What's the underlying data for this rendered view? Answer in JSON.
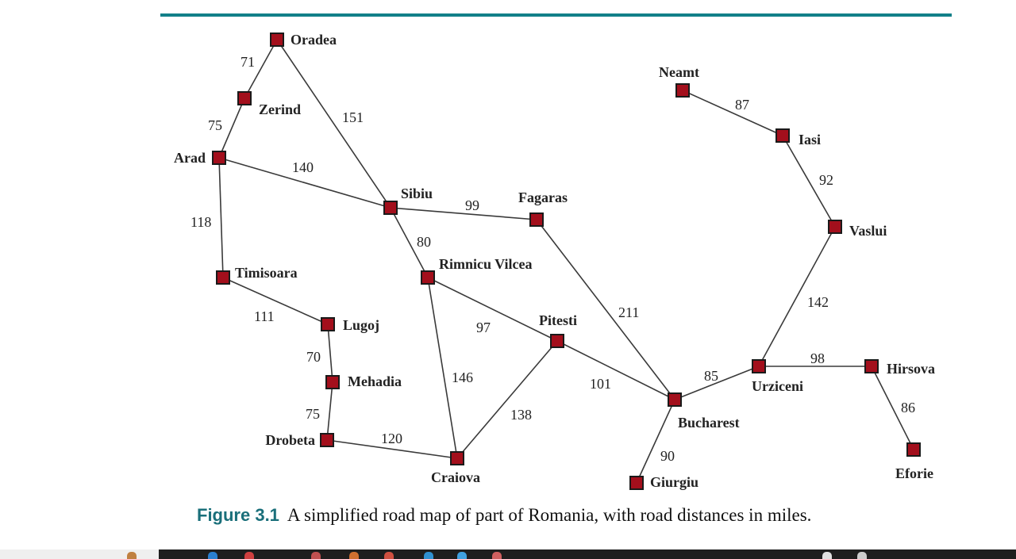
{
  "colors": {
    "accent_rule": "#128089",
    "node_fill": "#a30f1c",
    "node_stroke": "#1a1a1a",
    "edge": "#3a3a3a",
    "figure_number": "#1a6f7a"
  },
  "cities": [
    {
      "id": "oradea",
      "name": "Oradea"
    },
    {
      "id": "zerind",
      "name": "Zerind"
    },
    {
      "id": "arad",
      "name": "Arad"
    },
    {
      "id": "sibiu",
      "name": "Sibiu"
    },
    {
      "id": "fagaras",
      "name": "Fagaras"
    },
    {
      "id": "timisoara",
      "name": "Timisoara"
    },
    {
      "id": "rimnicu",
      "name": "Rimnicu Vilcea"
    },
    {
      "id": "lugoj",
      "name": "Lugoj"
    },
    {
      "id": "pitesti",
      "name": "Pitesti"
    },
    {
      "id": "mehadia",
      "name": "Mehadia"
    },
    {
      "id": "drobeta",
      "name": "Drobeta"
    },
    {
      "id": "craiova",
      "name": "Craiova"
    },
    {
      "id": "bucharest",
      "name": "Bucharest"
    },
    {
      "id": "giurgiu",
      "name": "Giurgiu"
    },
    {
      "id": "urziceni",
      "name": "Urziceni"
    },
    {
      "id": "hirsova",
      "name": "Hirsova"
    },
    {
      "id": "eforie",
      "name": "Eforie"
    },
    {
      "id": "vaslui",
      "name": "Vaslui"
    },
    {
      "id": "iasi",
      "name": "Iasi"
    },
    {
      "id": "neamt",
      "name": "Neamt"
    }
  ],
  "roads": [
    {
      "from": "oradea",
      "to": "zerind",
      "distance": "71"
    },
    {
      "from": "zerind",
      "to": "arad",
      "distance": "75"
    },
    {
      "from": "oradea",
      "to": "sibiu",
      "distance": "151"
    },
    {
      "from": "arad",
      "to": "sibiu",
      "distance": "140"
    },
    {
      "from": "arad",
      "to": "timisoara",
      "distance": "118"
    },
    {
      "from": "timisoara",
      "to": "lugoj",
      "distance": "111"
    },
    {
      "from": "lugoj",
      "to": "mehadia",
      "distance": "70"
    },
    {
      "from": "mehadia",
      "to": "drobeta",
      "distance": "75"
    },
    {
      "from": "drobeta",
      "to": "craiova",
      "distance": "120"
    },
    {
      "from": "sibiu",
      "to": "fagaras",
      "distance": "99"
    },
    {
      "from": "sibiu",
      "to": "rimnicu",
      "distance": "80"
    },
    {
      "from": "rimnicu",
      "to": "pitesti",
      "distance": "97"
    },
    {
      "from": "rimnicu",
      "to": "craiova",
      "distance": "146"
    },
    {
      "from": "craiova",
      "to": "pitesti",
      "distance": "138"
    },
    {
      "from": "fagaras",
      "to": "bucharest",
      "distance": "211"
    },
    {
      "from": "pitesti",
      "to": "bucharest",
      "distance": "101"
    },
    {
      "from": "bucharest",
      "to": "giurgiu",
      "distance": "90"
    },
    {
      "from": "bucharest",
      "to": "urziceni",
      "distance": "85"
    },
    {
      "from": "urziceni",
      "to": "hirsova",
      "distance": "98"
    },
    {
      "from": "hirsova",
      "to": "eforie",
      "distance": "86"
    },
    {
      "from": "urziceni",
      "to": "vaslui",
      "distance": "142"
    },
    {
      "from": "vaslui",
      "to": "iasi",
      "distance": "92"
    },
    {
      "from": "iasi",
      "to": "neamt",
      "distance": "87"
    }
  ],
  "caption": {
    "figure_number": "Figure 3.1",
    "text": "A simplified road map of part of Romania, with road distances in miles."
  }
}
